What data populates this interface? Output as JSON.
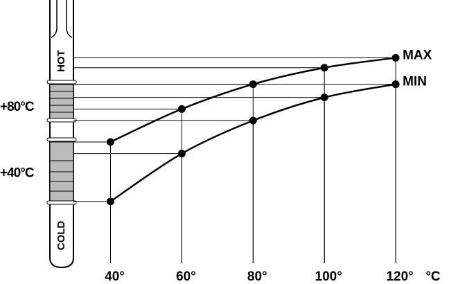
{
  "chart_data": {
    "type": "line",
    "labels": [
      "HOT",
      "COLD"
    ],
    "x_unit": "°C",
    "x": [
      40,
      60,
      80,
      100,
      120
    ],
    "xlim": [
      9,
      140
    ],
    "xticks": [
      {
        "value": 40,
        "label": "40°"
      },
      {
        "value": 60,
        "label": "60°"
      },
      {
        "value": 80,
        "label": "80°"
      },
      {
        "value": 100,
        "label": "100°"
      },
      {
        "value": 120,
        "label": "120°"
      }
    ],
    "ylim": [
      -27,
      145
    ],
    "yticks": [
      {
        "value": 40,
        "label": "+40°C"
      },
      {
        "value": 80,
        "label": "+80°C"
      }
    ],
    "series": [
      {
        "name": "MAX",
        "color": "#000000",
        "values": [
          59,
          79,
          94,
          104,
          110
        ]
      },
      {
        "name": "MIN",
        "color": "#000000",
        "values": [
          23,
          52,
          72,
          86,
          94
        ]
      }
    ]
  }
}
